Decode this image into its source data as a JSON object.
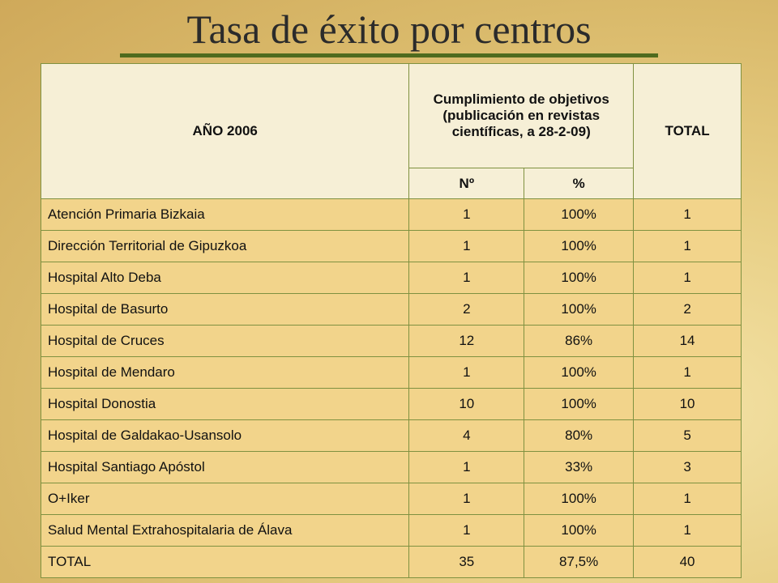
{
  "title": "Tasa de éxito por centros",
  "table": {
    "header": {
      "year": "AÑO 2006",
      "group": "Cumplimiento de objetivos (publicación en revistas científicas, a 28-2-09)",
      "total": "TOTAL",
      "sub": [
        "Nº",
        "%"
      ]
    },
    "rows": [
      [
        "Atención Primaria Bizkaia",
        "1",
        "100%",
        "1"
      ],
      [
        "Dirección Territorial de Gipuzkoa",
        "1",
        "100%",
        "1"
      ],
      [
        "Hospital Alto Deba",
        "1",
        "100%",
        "1"
      ],
      [
        "Hospital de Basurto",
        "2",
        "100%",
        "2"
      ],
      [
        "Hospital de Cruces",
        "12",
        "86%",
        "14"
      ],
      [
        "Hospital de Mendaro",
        "1",
        "100%",
        "1"
      ],
      [
        "Hospital Donostia",
        "10",
        "100%",
        "10"
      ],
      [
        "Hospital de Galdakao-Usansolo",
        "4",
        "80%",
        "5"
      ],
      [
        "Hospital Santiago Apóstol",
        "1",
        "33%",
        "3"
      ],
      [
        "O+Iker",
        "1",
        "100%",
        "1"
      ],
      [
        "Salud Mental Extrahospitalaria de Álava",
        "1",
        "100%",
        "1"
      ],
      [
        "TOTAL",
        "35",
        "87,5%",
        "40"
      ]
    ]
  }
}
